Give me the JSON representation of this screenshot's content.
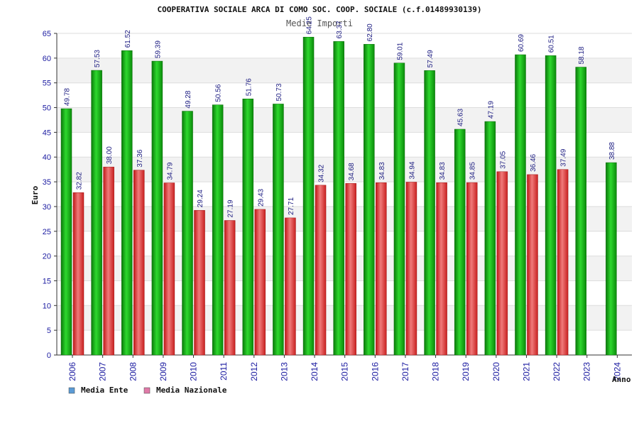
{
  "chart_data": {
    "type": "bar",
    "title": "COOPERATIVA SOCIALE ARCA DI COMO SOC. COOP. SOCIALE (c.f.01489930139)",
    "subtitle": "Medie Importi",
    "xlabel": "Anno",
    "ylabel": "Euro",
    "ylim": [
      0,
      65
    ],
    "yticks": [
      0,
      5,
      10,
      15,
      20,
      25,
      30,
      35,
      40,
      45,
      50,
      55,
      60,
      65
    ],
    "grid": "horizontal bands",
    "legend_position": "bottom-left",
    "categories": [
      "2006",
      "2007",
      "2008",
      "2009",
      "2010",
      "2011",
      "2012",
      "2013",
      "2014",
      "2015",
      "2016",
      "2017",
      "2018",
      "2019",
      "2020",
      "2021",
      "2022",
      "2023",
      "2024"
    ],
    "series": [
      {
        "name": "Media Ente",
        "legend_color": "#5b9bd5",
        "bar_color": "#1faa1f",
        "values": [
          49.78,
          57.53,
          61.52,
          59.39,
          49.28,
          50.56,
          51.76,
          50.73,
          64.25,
          63.37,
          62.8,
          59.01,
          57.49,
          45.63,
          47.19,
          60.69,
          60.51,
          58.18,
          38.88
        ],
        "labels": [
          "49.78",
          "57.53",
          "61.52",
          "59.39",
          "49.28",
          "50.56",
          "51.76",
          "50.73",
          "64.25",
          "63.37",
          "62.80",
          "59.01",
          "57.49",
          "45.63",
          "47.19",
          "60.69",
          "60.51",
          "58.18",
          "38.88"
        ]
      },
      {
        "name": "Media Nazionale",
        "legend_color": "#e07aa8",
        "bar_color": "#e8383a",
        "values": [
          32.82,
          38.0,
          37.36,
          34.79,
          29.24,
          27.19,
          29.43,
          27.71,
          34.32,
          34.68,
          34.83,
          34.94,
          34.83,
          34.85,
          37.05,
          36.46,
          37.49,
          null,
          null
        ],
        "labels": [
          "32.82",
          "38.00",
          "37.36",
          "34.79",
          "29.24",
          "27.19",
          "29.43",
          "27.71",
          "34.32",
          "34.68",
          "34.83",
          "34.94",
          "34.83",
          "34.85",
          "37.05",
          "36.46",
          "37.49",
          "",
          ""
        ]
      }
    ]
  }
}
